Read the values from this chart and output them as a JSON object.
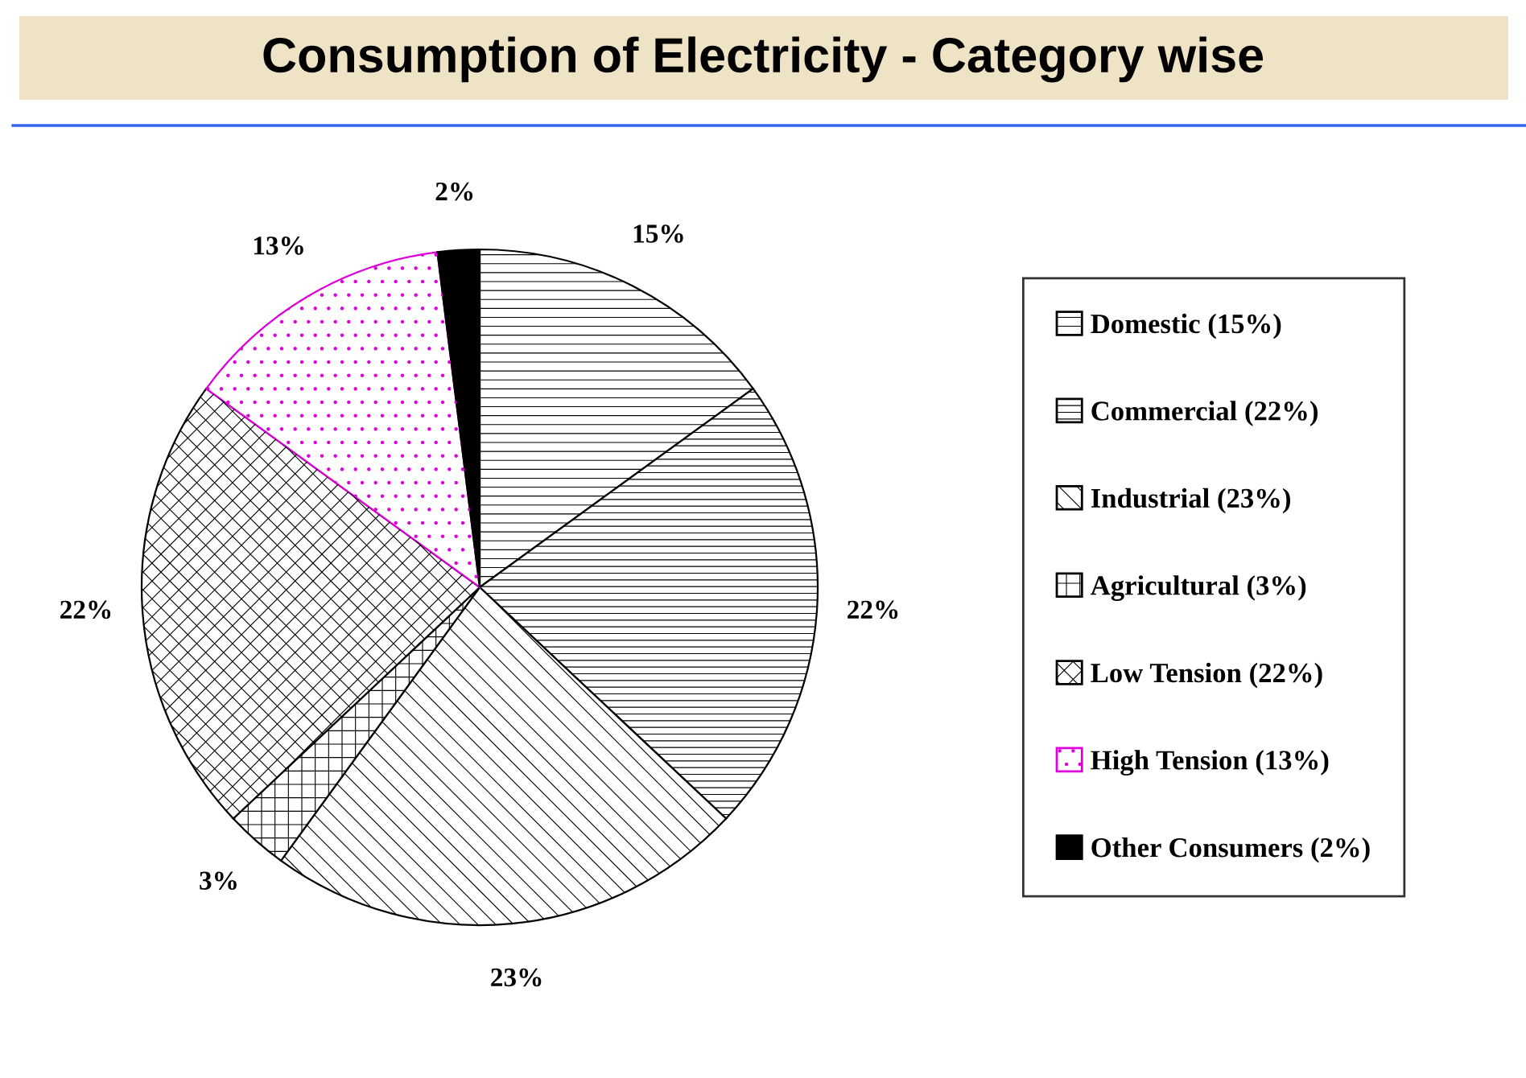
{
  "chart_data": {
    "type": "pie",
    "title": "Consumption of Electricity - Category wise",
    "categories": [
      "Domestic (15%)",
      "Commercial (22%)",
      "Industrial (23%)",
      "Agricultural (3%)",
      "Low Tension (22%)",
      "High Tension (13%)",
      "Other Consumers (2%)"
    ],
    "values": [
      15,
      22,
      23,
      3,
      22,
      13,
      2
    ],
    "value_labels": [
      "15%",
      "22%",
      "23%",
      "3%",
      "22%",
      "13%",
      "2%"
    ],
    "colors": [
      "#ffffff",
      "#ffffff",
      "#ffffff",
      "#ffffff",
      "#ffffff",
      "#ffffff",
      "#000000"
    ],
    "legend": "right"
  }
}
